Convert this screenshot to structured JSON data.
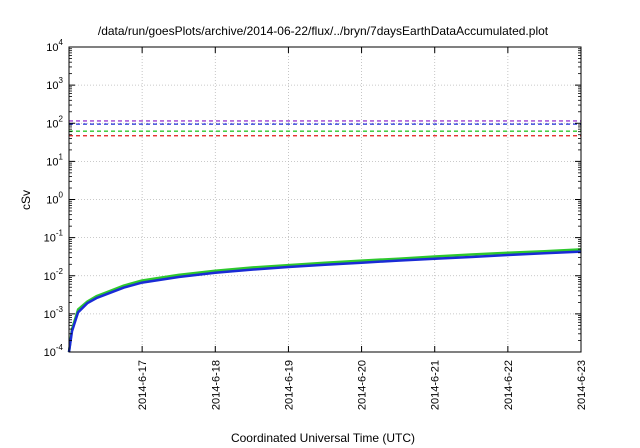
{
  "chart_data": {
    "type": "line",
    "title": "/data/run/goesPlots/archive/2014-06-22/flux/../bryn/7daysEarthDataAccumulated.plot",
    "xlabel": "Coordinated Universal Time (UTC)",
    "ylabel": "cSv",
    "xlim": [
      "2014-06-16",
      "2014-06-23"
    ],
    "ylim": [
      0.0001,
      10000
    ],
    "yscale": "log",
    "grid": true,
    "x_ticks": [
      "2014-6-17",
      "2014-6-18",
      "2014-6-19",
      "2014-6-20",
      "2014-6-21",
      "2014-6-22",
      "2014-6-23"
    ],
    "y_ticks": [
      {
        "value": 0.0001,
        "base": "10",
        "exp": "-4"
      },
      {
        "value": 0.001,
        "base": "10",
        "exp": "-3"
      },
      {
        "value": 0.01,
        "base": "10",
        "exp": "-2"
      },
      {
        "value": 0.1,
        "base": "10",
        "exp": "-1"
      },
      {
        "value": 1,
        "base": "10",
        "exp": "0"
      },
      {
        "value": 10,
        "base": "10",
        "exp": "1"
      },
      {
        "value": 100,
        "base": "10",
        "exp": "2"
      },
      {
        "value": 1000,
        "base": "10",
        "exp": "3"
      },
      {
        "value": 10000,
        "base": "10",
        "exp": "4"
      }
    ],
    "thresholds": [
      {
        "value": 115,
        "color": "#9a3fd0"
      },
      {
        "value": 95,
        "color": "#1a2bd6"
      },
      {
        "value": 62,
        "color": "#2ec82e"
      },
      {
        "value": 47,
        "color": "#e01818"
      }
    ],
    "series": [
      {
        "color": "#2ec82e",
        "x": [
          "2014-06-16T00:00",
          "2014-06-16T01:00",
          "2014-06-16T03:00",
          "2014-06-16T06:00",
          "2014-06-16T09:00",
          "2014-06-16T12:00",
          "2014-06-16T18:00",
          "2014-06-17T00:00",
          "2014-06-17T12:00",
          "2014-06-18T00:00",
          "2014-06-18T12:00",
          "2014-06-19T00:00",
          "2014-06-19T12:00",
          "2014-06-20T00:00",
          "2014-06-20T12:00",
          "2014-06-21T00:00",
          "2014-06-21T12:00",
          "2014-06-22T00:00",
          "2014-06-22T12:00",
          "2014-06-23T00:00"
        ],
        "values": [
          0.0001,
          0.0004,
          0.0013,
          0.0021,
          0.0029,
          0.0036,
          0.0055,
          0.0075,
          0.0105,
          0.0135,
          0.0165,
          0.019,
          0.022,
          0.025,
          0.028,
          0.032,
          0.036,
          0.04,
          0.044,
          0.049
        ]
      },
      {
        "color": "#1a2bd6",
        "x": [
          "2014-06-16T00:00",
          "2014-06-16T01:00",
          "2014-06-16T03:00",
          "2014-06-16T06:00",
          "2014-06-16T09:00",
          "2014-06-16T12:00",
          "2014-06-16T18:00",
          "2014-06-17T00:00",
          "2014-06-17T12:00",
          "2014-06-18T00:00",
          "2014-06-18T12:00",
          "2014-06-19T00:00",
          "2014-06-19T12:00",
          "2014-06-20T00:00",
          "2014-06-20T12:00",
          "2014-06-21T00:00",
          "2014-06-21T12:00",
          "2014-06-22T00:00",
          "2014-06-22T12:00",
          "2014-06-23T00:00"
        ],
        "values": [
          0.0001,
          0.00035,
          0.0011,
          0.0019,
          0.0026,
          0.0032,
          0.0049,
          0.0066,
          0.0093,
          0.012,
          0.0145,
          0.017,
          0.0195,
          0.022,
          0.025,
          0.028,
          0.031,
          0.035,
          0.039,
          0.043
        ]
      }
    ]
  }
}
